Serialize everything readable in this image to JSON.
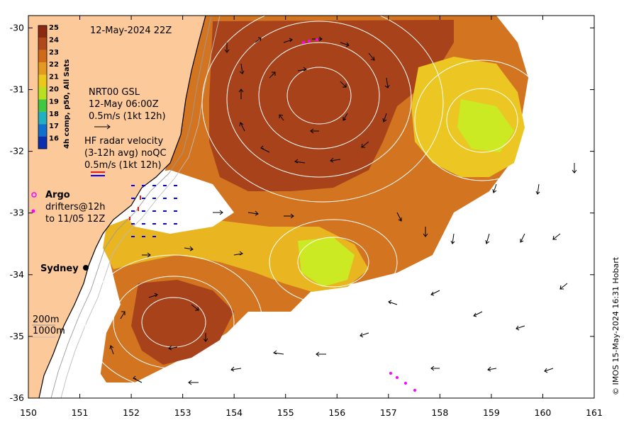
{
  "map": {
    "timestamp": "12-May-2024 22Z",
    "credit": "© IMOS 15-May-2024 16:31 Hobart",
    "lon_ticks": [
      "150",
      "151",
      "152",
      "153",
      "154",
      "155",
      "156",
      "157",
      "158",
      "159",
      "160",
      "161"
    ],
    "lat_ticks": [
      "-30",
      "-31",
      "-32",
      "-33",
      "-34",
      "-35",
      "-36"
    ],
    "lon_range": [
      150,
      161
    ],
    "lat_range": [
      -36,
      -29.8
    ],
    "colors": {
      "land": "#fbc99a",
      "sst_warm": "#a0400f",
      "sst_mid": "#d97a1a",
      "sst_cool": "#ecc320",
      "sst_green": "#c9ea22",
      "contour": "#ffffff",
      "vector": "#000000",
      "radar_vector": "#0000ff",
      "argo": "#ff00ff",
      "drifter": "#ff00ff"
    },
    "colorbar": {
      "title": "4h comp, p50, All Sats",
      "ticks": [
        "25",
        "24",
        "23",
        "22",
        "21",
        "20",
        "19",
        "18",
        "17",
        "16"
      ],
      "colors": [
        "#8c2a10",
        "#b0481a",
        "#d06a18",
        "#e49a20",
        "#eac81c",
        "#b8e020",
        "#40c840",
        "#20b0c0",
        "#1070d0",
        "#0a30b0"
      ]
    },
    "legend": {
      "gsl_line1": "NRT00 GSL",
      "gsl_line2": "12-May 06:00Z",
      "gsl_line3": "0.5m/s (1kt 12h)",
      "hf_line1": "HF radar velocity",
      "hf_line2": "(3-12h avg) noQC",
      "hf_line3": "0.5m/s (1kt 12h)",
      "argo_label": "Argo",
      "drifter_line1": "drifters@12h",
      "drifter_line2": "to 11/05 12Z",
      "depth_200": "200m",
      "depth_1000": "1000m"
    },
    "places": {
      "sydney": "Sydney"
    }
  }
}
